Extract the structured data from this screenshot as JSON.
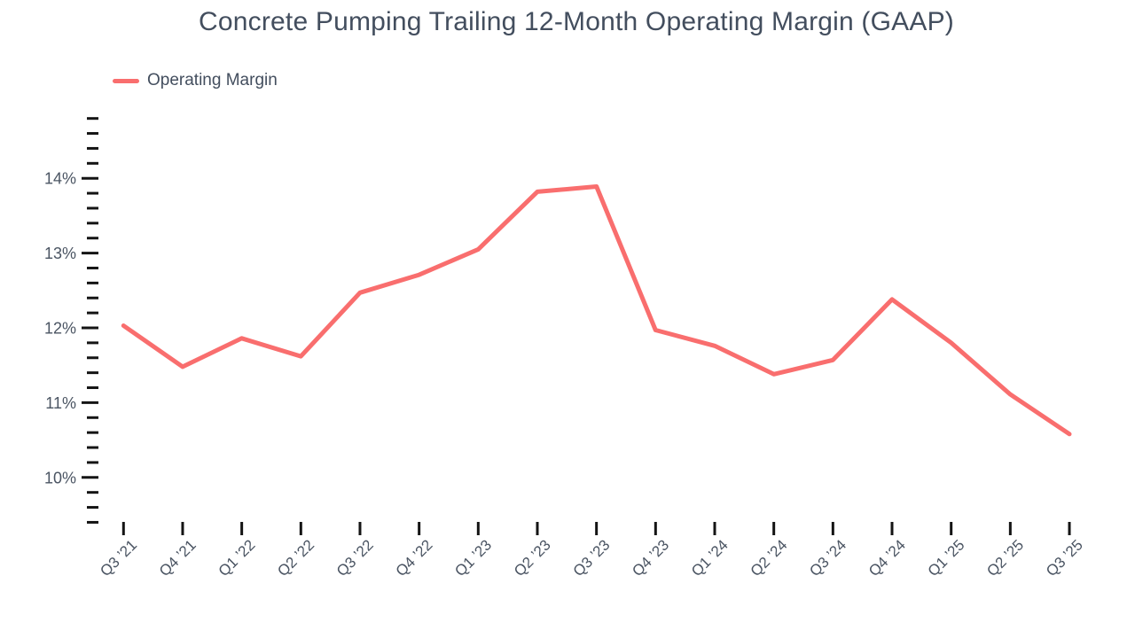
{
  "title": {
    "text": "Concrete Pumping Trailing 12-Month Operating Margin (GAAP)"
  },
  "legend": {
    "items": [
      {
        "label": "Operating Margin",
        "color": "#f96e6e"
      }
    ]
  },
  "colors": {
    "accent": "#f96e6e",
    "title_text": "#434e5e",
    "axis_label_text": "#4a5462",
    "tick_mark": "#141414",
    "background": "#ffffff"
  },
  "chart_data": {
    "type": "line",
    "title": "Concrete Pumping Trailing 12-Month Operating Margin (GAAP)",
    "xlabel": "",
    "ylabel": "",
    "grid": false,
    "legend_position": "top-left",
    "categories": [
      "Q3 ’21",
      "Q4 ’21",
      "Q1 ’22",
      "Q2 ’22",
      "Q3 ’22",
      "Q4 ’22",
      "Q1 ’23",
      "Q2 ’23",
      "Q3 ’23",
      "Q4 ’23",
      "Q1 ’24",
      "Q2 ’24",
      "Q3 ’24",
      "Q4 ’24",
      "Q1 ’25",
      "Q2 ’25",
      "Q3 ’25"
    ],
    "series": [
      {
        "name": "Operating Margin",
        "color": "#f96e6e",
        "unit": "%",
        "values": [
          12.03,
          11.48,
          11.86,
          11.62,
          12.47,
          12.71,
          13.05,
          13.82,
          13.89,
          11.97,
          11.76,
          11.38,
          11.57,
          12.38,
          11.8,
          11.11,
          10.58
        ]
      }
    ],
    "y_axis": {
      "unit": "%",
      "min": 9.4,
      "max": 14.8,
      "minor_tick_step": 0.2,
      "major_tick_step": 1,
      "major_tick_labels": [
        "10%",
        "11%",
        "12%",
        "13%",
        "14%"
      ]
    }
  }
}
